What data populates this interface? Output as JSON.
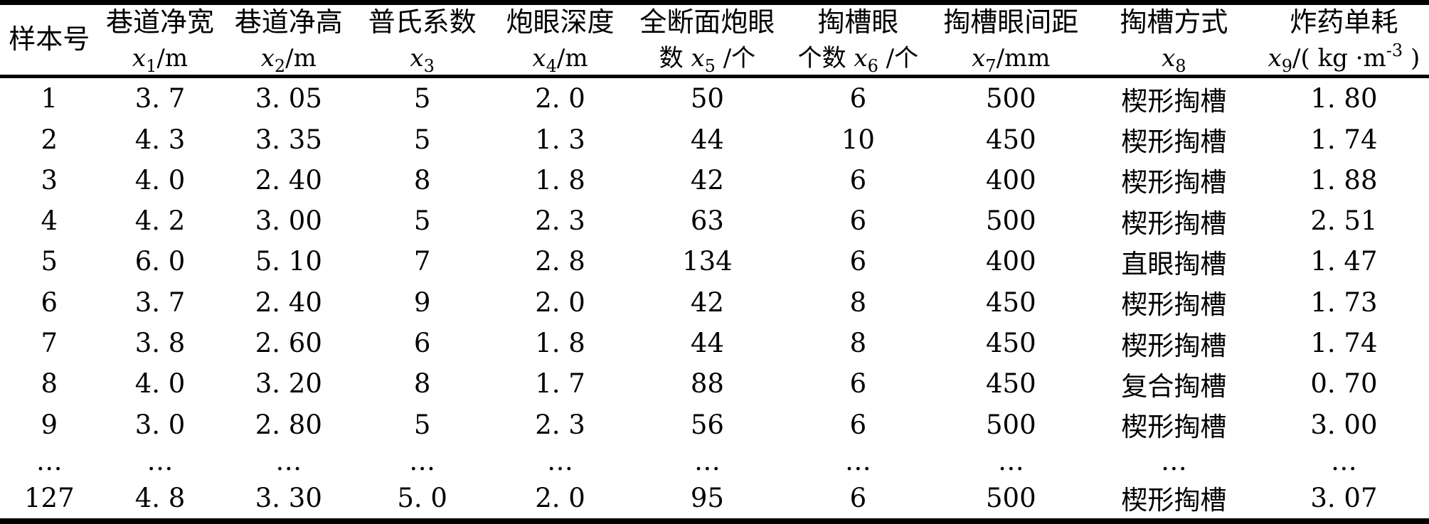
{
  "table": {
    "name": "blasting-sample-data-table",
    "columns": [
      {
        "label": "样本号"
      },
      {
        "label": "巷道净宽",
        "pre": "",
        "sym": "x",
        "sub": "1",
        "unit": "/m",
        "sup": "",
        "post": ""
      },
      {
        "label": "巷道净高",
        "pre": "",
        "sym": "x",
        "sub": "2",
        "unit": "/m",
        "sup": "",
        "post": ""
      },
      {
        "label": "普氏系数",
        "pre": "",
        "sym": "x",
        "sub": "3",
        "unit": "",
        "sup": "",
        "post": ""
      },
      {
        "label": "炮眼深度",
        "pre": "",
        "sym": "x",
        "sub": "4",
        "unit": "/m",
        "sup": "",
        "post": ""
      },
      {
        "label": "全断面炮眼",
        "pre": "数 ",
        "sym": "x",
        "sub": "5",
        "unit": " /个",
        "sup": "",
        "post": ""
      },
      {
        "label": "掏槽眼",
        "pre": "个数 ",
        "sym": "x",
        "sub": "6",
        "unit": " /个",
        "sup": "",
        "post": ""
      },
      {
        "label": "掏槽眼间距",
        "pre": "",
        "sym": "x",
        "sub": "7",
        "unit": "/mm",
        "sup": "",
        "post": ""
      },
      {
        "label": "掏槽方式",
        "pre": "",
        "sym": "x",
        "sub": "8",
        "unit": "",
        "sup": "",
        "post": ""
      },
      {
        "label": "炸药单耗",
        "pre": "",
        "sym": "x",
        "sub": "9",
        "unit": "/( kg ·m",
        "sup": "-3",
        "post": " )"
      }
    ],
    "rows": [
      [
        "1",
        "3. 7",
        "3. 05",
        "5",
        "2. 0",
        "50",
        "6",
        "500",
        "楔形掏槽",
        "1. 80"
      ],
      [
        "2",
        "4. 3",
        "3. 35",
        "5",
        "1. 3",
        "44",
        "10",
        "450",
        "楔形掏槽",
        "1. 74"
      ],
      [
        "3",
        "4. 0",
        "2. 40",
        "8",
        "1. 8",
        "42",
        "6",
        "400",
        "楔形掏槽",
        "1. 88"
      ],
      [
        "4",
        "4. 2",
        "3. 00",
        "5",
        "2. 3",
        "63",
        "6",
        "500",
        "楔形掏槽",
        "2. 51"
      ],
      [
        "5",
        "6. 0",
        "5. 10",
        "7",
        "2. 8",
        "134",
        "6",
        "400",
        "直眼掏槽",
        "1. 47"
      ],
      [
        "6",
        "3. 7",
        "2. 40",
        "9",
        "2. 0",
        "42",
        "8",
        "450",
        "楔形掏槽",
        "1. 73"
      ],
      [
        "7",
        "3. 8",
        "2. 60",
        "6",
        "1. 8",
        "44",
        "8",
        "450",
        "楔形掏槽",
        "1. 74"
      ],
      [
        "8",
        "4. 0",
        "3. 20",
        "8",
        "1. 7",
        "88",
        "6",
        "450",
        "复合掏槽",
        "0. 70"
      ],
      [
        "9",
        "3. 0",
        "2. 80",
        "5",
        "2. 3",
        "56",
        "6",
        "500",
        "楔形掏槽",
        "3. 00"
      ],
      [
        "…",
        "…",
        "…",
        "…",
        "…",
        "…",
        "…",
        "…",
        "…",
        "…"
      ],
      [
        "127",
        "4. 8",
        "3. 30",
        "5. 0",
        "2. 0",
        "95",
        "6",
        "500",
        "楔形掏槽",
        "3. 07"
      ]
    ]
  }
}
